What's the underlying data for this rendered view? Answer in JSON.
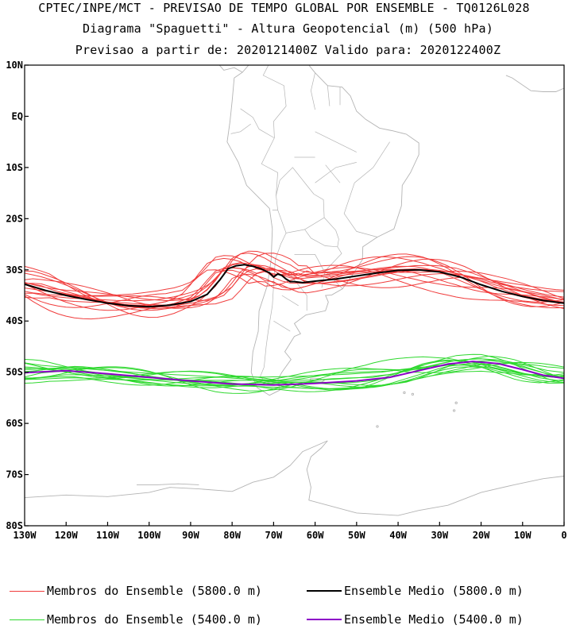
{
  "chart_data": {
    "type": "line",
    "title": "CPTEC/INPE/MCT - PREVISAO DE TEMPO GLOBAL POR ENSEMBLE - TQ0126L028",
    "subtitle": "Diagrama \"Spaguetti\" - Altura Geopotencial (m) (500 hPa)",
    "subtitle2": "Previsao a partir de: 2020121400Z  Valido para: 2020122400Z",
    "xlim": [
      -130,
      0
    ],
    "ylim": [
      -80,
      10
    ],
    "x_ticks": [
      -130,
      -120,
      -110,
      -100,
      -90,
      -80,
      -70,
      -60,
      -50,
      -40,
      -30,
      -20,
      -10,
      0
    ],
    "x_tick_labels": [
      "130W",
      "120W",
      "110W",
      "100W",
      "90W",
      "80W",
      "70W",
      "60W",
      "50W",
      "40W",
      "30W",
      "20W",
      "10W",
      "0"
    ],
    "y_ticks": [
      10,
      0,
      -10,
      -20,
      -30,
      -40,
      -50,
      -60,
      -70,
      -80
    ],
    "y_tick_labels": [
      "10N",
      "EQ",
      "10S",
      "20S",
      "30S",
      "40S",
      "50S",
      "60S",
      "70S",
      "80S"
    ],
    "colors": {
      "members_5800": "#f03c3c",
      "mean_5800": "#000000",
      "members_5400": "#2ed82e",
      "mean_5400": "#8c00c8",
      "coast": "#b4b4b4",
      "axis": "#000000"
    },
    "mean_5800": {
      "name": "Ensemble Medio (5800.0 m)",
      "x": [
        -130,
        -125,
        -120,
        -115,
        -110,
        -105,
        -100,
        -95,
        -90,
        -86,
        -83,
        -81,
        -79,
        -77,
        -75,
        -73,
        -71,
        -70,
        -69,
        -68,
        -67,
        -66,
        -65,
        -63,
        -60,
        -55,
        -50,
        -45,
        -40,
        -35,
        -30,
        -25,
        -20,
        -15,
        -10,
        -5,
        0
      ],
      "y": [
        -32.8,
        -34.0,
        -35.0,
        -35.8,
        -36.5,
        -37.0,
        -37.2,
        -36.9,
        -36.2,
        -34.8,
        -32.0,
        -29.8,
        -29.2,
        -29.0,
        -29.3,
        -29.8,
        -30.6,
        -31.4,
        -30.8,
        -31.1,
        -31.8,
        -32.3,
        -32.3,
        -32.5,
        -32.2,
        -31.8,
        -31.2,
        -30.6,
        -30.1,
        -30.0,
        -30.4,
        -31.4,
        -32.9,
        -34.2,
        -35.2,
        -36.0,
        -36.5
      ]
    },
    "mean_5400": {
      "name": "Ensemble Medio (5400.0 m)",
      "x": [
        -130,
        -120,
        -110,
        -100,
        -90,
        -80,
        -70,
        -60,
        -50,
        -42,
        -35,
        -28,
        -22,
        -16,
        -10,
        -5,
        0
      ],
      "y": [
        -50.1,
        -49.7,
        -50.3,
        -51.0,
        -51.7,
        -52.3,
        -52.5,
        -52.2,
        -51.7,
        -51.0,
        -49.7,
        -48.4,
        -47.9,
        -48.3,
        -49.5,
        -50.6,
        -51.2
      ]
    },
    "legend": {
      "members_5800": "Membros do Ensemble (5800.0 m)",
      "mean_5800": "Ensemble Medio (5800.0 m)",
      "members_5400": "Membros do Ensemble (5400.0 m)",
      "mean_5400": "Ensemble Medio (5400.0 m)"
    }
  }
}
